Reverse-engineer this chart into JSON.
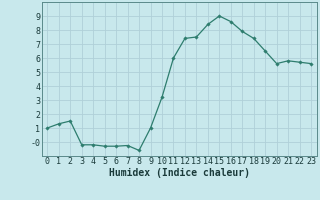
{
  "x": [
    0,
    1,
    2,
    3,
    4,
    5,
    6,
    7,
    8,
    9,
    10,
    11,
    12,
    13,
    14,
    15,
    16,
    17,
    18,
    19,
    20,
    21,
    22,
    23
  ],
  "y": [
    1.0,
    1.3,
    1.5,
    -0.2,
    -0.2,
    -0.3,
    -0.3,
    -0.25,
    -0.6,
    1.0,
    3.2,
    6.0,
    7.4,
    7.5,
    8.4,
    9.0,
    8.6,
    7.9,
    7.4,
    6.5,
    5.6,
    5.8,
    5.7,
    5.6
  ],
  "xlabel": "Humidex (Indice chaleur)",
  "ylim": [
    -1,
    10
  ],
  "xlim": [
    -0.5,
    23.5
  ],
  "yticks": [
    0,
    1,
    2,
    3,
    4,
    5,
    6,
    7,
    8,
    9
  ],
  "ytick_labels": [
    "-0",
    "1",
    "2",
    "3",
    "4",
    "5",
    "6",
    "7",
    "8",
    "9"
  ],
  "xticks": [
    0,
    1,
    2,
    3,
    4,
    5,
    6,
    7,
    8,
    9,
    10,
    11,
    12,
    13,
    14,
    15,
    16,
    17,
    18,
    19,
    20,
    21,
    22,
    23
  ],
  "line_color": "#2e7d6e",
  "marker": "D",
  "marker_size": 1.8,
  "bg_color": "#c8e8ec",
  "grid_color": "#b0d0d8",
  "xlabel_fontsize": 7,
  "tick_fontsize": 6
}
